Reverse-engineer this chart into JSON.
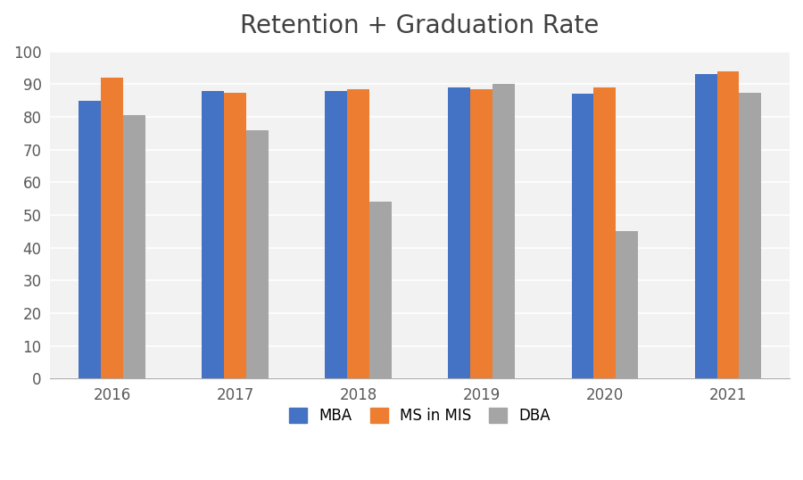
{
  "title": "Retention + Graduation Rate",
  "years": [
    "2016",
    "2017",
    "2018",
    "2019",
    "2020",
    "2021"
  ],
  "series": {
    "MBA": [
      85,
      88,
      88,
      89,
      87,
      93
    ],
    "MS in MIS": [
      92,
      87.5,
      88.5,
      88.5,
      89,
      94
    ],
    "DBA": [
      80.5,
      76,
      54,
      90,
      45,
      87.5
    ]
  },
  "colors": {
    "MBA": "#4472C4",
    "MS in MIS": "#ED7D31",
    "DBA": "#A5A5A5"
  },
  "ylim": [
    0,
    100
  ],
  "yticks": [
    0,
    10,
    20,
    30,
    40,
    50,
    60,
    70,
    80,
    90,
    100
  ],
  "legend_labels": [
    "MBA",
    "MS in MIS",
    "DBA"
  ],
  "title_fontsize": 20,
  "tick_fontsize": 12,
  "legend_fontsize": 12,
  "bar_width": 0.18,
  "background_color": "#FFFFFF",
  "plot_bg_color": "#F2F2F2",
  "grid_color": "#FFFFFF"
}
